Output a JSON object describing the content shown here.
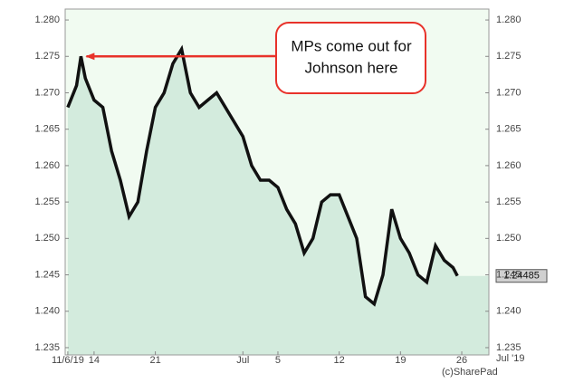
{
  "chart_data": {
    "type": "line",
    "x": [
      0,
      1,
      1.5,
      2,
      3,
      4,
      5,
      6,
      7,
      8,
      9,
      10,
      11,
      12,
      13,
      14,
      15,
      16,
      17,
      18,
      19,
      20,
      21,
      22,
      23,
      24,
      25,
      26,
      27,
      28,
      29,
      30,
      31,
      32,
      33,
      34,
      35,
      36,
      37,
      38,
      39,
      40,
      41,
      42,
      43,
      44,
      44.5
    ],
    "series": [
      {
        "color": "#111111",
        "fill": "#d3ebdd",
        "values": [
          1.268,
          1.271,
          1.275,
          1.272,
          1.269,
          1.268,
          1.262,
          1.258,
          1.253,
          1.255,
          1.262,
          1.268,
          1.27,
          1.274,
          1.276,
          1.27,
          1.268,
          1.269,
          1.27,
          1.268,
          1.266,
          1.264,
          1.26,
          1.258,
          1.258,
          1.257,
          1.254,
          1.252,
          1.248,
          1.25,
          1.255,
          1.256,
          1.256,
          1.253,
          1.25,
          1.242,
          1.241,
          1.245,
          1.254,
          1.25,
          1.248,
          1.245,
          1.244,
          1.249,
          1.247,
          1.246,
          1.24485
        ]
      }
    ],
    "xlim": [
      -0.3,
      48.1
    ],
    "xticks": [
      {
        "value": 0,
        "label": "11/6/19"
      },
      {
        "value": 3,
        "label": "14"
      },
      {
        "value": 10,
        "label": "21"
      },
      {
        "value": 20,
        "label": "Jul"
      },
      {
        "value": 24,
        "label": "5"
      },
      {
        "value": 31,
        "label": "12"
      },
      {
        "value": 38,
        "label": "19"
      },
      {
        "value": 45,
        "label": "26"
      }
    ],
    "x_period_label": "Jul '19",
    "ylim": [
      1.234,
      1.2815
    ],
    "yticks": [
      {
        "value": 1.235,
        "label": "1.235"
      },
      {
        "value": 1.24,
        "label": "1.240"
      },
      {
        "value": 1.245,
        "label": "1.245"
      },
      {
        "value": 1.25,
        "label": "1.250"
      },
      {
        "value": 1.255,
        "label": "1.255"
      },
      {
        "value": 1.26,
        "label": "1.260"
      },
      {
        "value": 1.265,
        "label": "1.265"
      },
      {
        "value": 1.27,
        "label": "1.270"
      },
      {
        "value": 1.275,
        "label": "1.275"
      },
      {
        "value": 1.28,
        "label": "1.280"
      }
    ],
    "annotation": {
      "lines": [
        "MPs come out for",
        "Johnson here"
      ],
      "color": "#e8322a",
      "point_index": 2
    },
    "credit": "(c)SharePad",
    "background": "#f1fbf1"
  }
}
